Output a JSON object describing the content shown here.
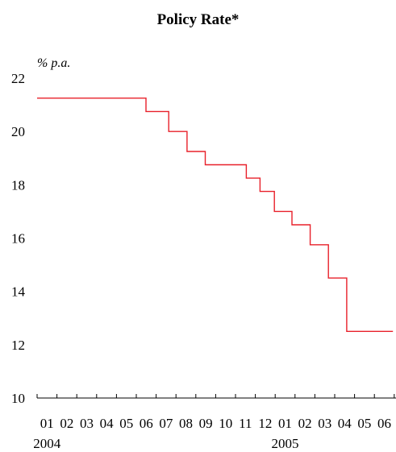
{
  "chart_data": {
    "type": "line",
    "title": "Policy Rate*",
    "unit_label": "% p.a.",
    "ylim": [
      10,
      22
    ],
    "y_ticks": [
      10,
      12,
      14,
      16,
      18,
      20,
      22
    ],
    "x_month_labels": [
      "01",
      "02",
      "03",
      "04",
      "05",
      "06",
      "07",
      "08",
      "09",
      "10",
      "11",
      "12",
      "01",
      "02",
      "03",
      "04",
      "05",
      "06"
    ],
    "x_year_labels": [
      {
        "label": "2004",
        "month_index": 0
      },
      {
        "label": "2005",
        "month_index": 12
      }
    ],
    "step": true,
    "series": [
      {
        "color": "#e8202a",
        "points": [
          {
            "date": "2004-01-01",
            "value": 21.25
          },
          {
            "date": "2004-06-16",
            "value": 20.75
          },
          {
            "date": "2004-07-21",
            "value": 20.0
          },
          {
            "date": "2004-08-18",
            "value": 19.25
          },
          {
            "date": "2004-09-15",
            "value": 18.75
          },
          {
            "date": "2004-11-17",
            "value": 18.25
          },
          {
            "date": "2004-12-08",
            "value": 17.75
          },
          {
            "date": "2004-12-30",
            "value": 17.0
          },
          {
            "date": "2005-01-26",
            "value": 16.5
          },
          {
            "date": "2005-02-23",
            "value": 15.75
          },
          {
            "date": "2005-03-23",
            "value": 14.5
          },
          {
            "date": "2005-04-20",
            "value": 12.5
          },
          {
            "date": "2005-06-30",
            "value": 12.5
          }
        ]
      }
    ]
  }
}
